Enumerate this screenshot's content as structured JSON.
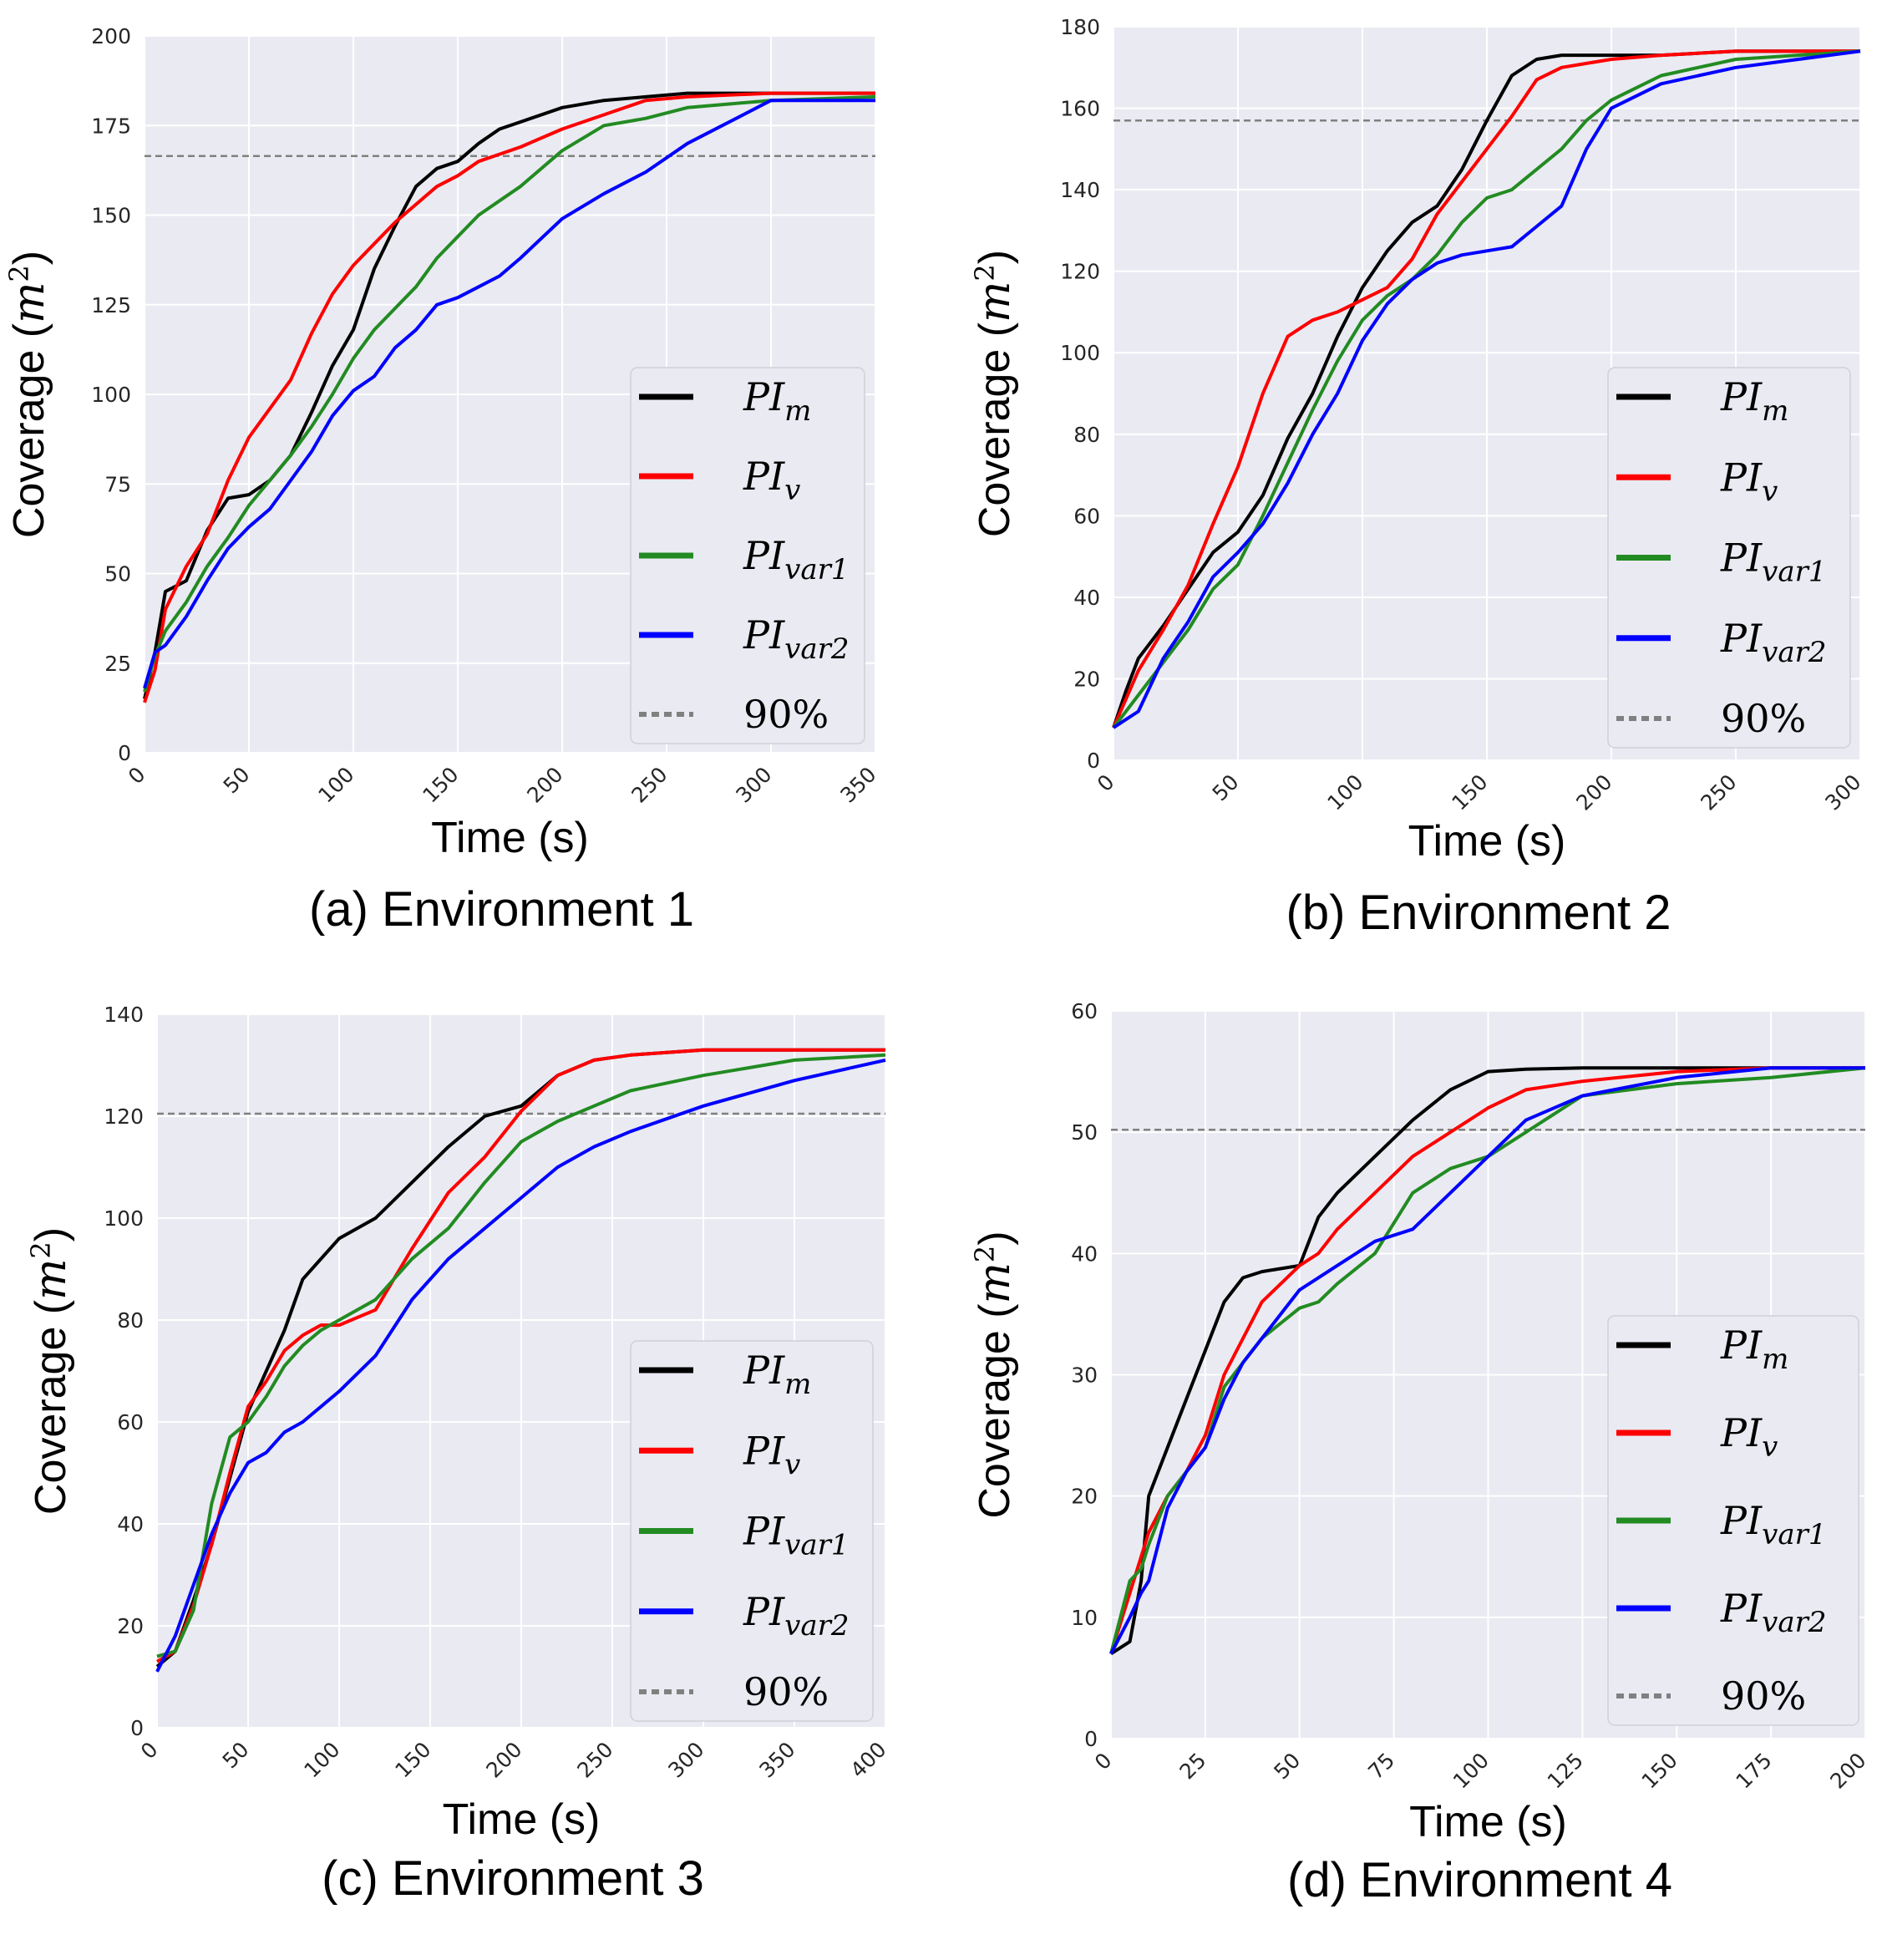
{
  "legend": [
    {
      "main": "PI",
      "sub": "m",
      "color": "#000000",
      "style": "solid"
    },
    {
      "main": "PI",
      "sub": "v",
      "color": "#ff0000",
      "style": "solid"
    },
    {
      "main": "PI",
      "sub": "var1",
      "color": "#228b22",
      "style": "solid"
    },
    {
      "main": "PI",
      "sub": "var2",
      "color": "#0000ff",
      "style": "solid"
    },
    {
      "main": "90%",
      "sub": "",
      "color": "#808080",
      "style": "dotted"
    }
  ],
  "chart_data": [
    {
      "type": "line",
      "caption": "(a) Environment 1",
      "xlabel": "Time (s)",
      "ylabel": "Coverage",
      "ylabel_unit": "m",
      "ylabel_exp": "2",
      "xlim": [
        0,
        350
      ],
      "ylim": [
        0,
        200
      ],
      "xticks": [
        "0",
        "50",
        "100",
        "150",
        "200",
        "250",
        "300",
        "350"
      ],
      "yticks": [
        "0",
        "25",
        "50",
        "75",
        "100",
        "125",
        "150",
        "175",
        "200"
      ],
      "threshold": 166.5,
      "grid": true,
      "legend_position": "lower-right",
      "series": [
        {
          "name": "PI_m",
          "x": [
            0,
            5,
            10,
            20,
            30,
            40,
            50,
            60,
            70,
            80,
            90,
            100,
            110,
            120,
            130,
            140,
            150,
            160,
            170,
            180,
            200,
            220,
            240,
            260,
            300,
            350
          ],
          "y": [
            15,
            28,
            45,
            48,
            62,
            71,
            72,
            76,
            83,
            95,
            108,
            118,
            135,
            147,
            158,
            163,
            165,
            170,
            174,
            176,
            180,
            182,
            183,
            184,
            184,
            184
          ]
        },
        {
          "name": "PI_v",
          "x": [
            0,
            5,
            10,
            20,
            30,
            40,
            50,
            60,
            70,
            80,
            90,
            100,
            110,
            120,
            130,
            140,
            150,
            160,
            170,
            180,
            200,
            220,
            240,
            260,
            300,
            350
          ],
          "y": [
            14,
            23,
            40,
            52,
            61,
            76,
            88,
            96,
            104,
            117,
            128,
            136,
            142,
            148,
            153,
            158,
            161,
            165,
            167,
            169,
            174,
            178,
            182,
            183,
            184,
            184
          ]
        },
        {
          "name": "PI_var1",
          "x": [
            0,
            5,
            10,
            20,
            30,
            40,
            50,
            60,
            70,
            80,
            90,
            100,
            110,
            120,
            130,
            140,
            150,
            160,
            170,
            180,
            200,
            220,
            240,
            260,
            300,
            350
          ],
          "y": [
            17,
            27,
            34,
            42,
            52,
            60,
            69,
            76,
            83,
            91,
            100,
            110,
            118,
            124,
            130,
            138,
            144,
            150,
            154,
            158,
            168,
            175,
            177,
            180,
            182,
            183
          ]
        },
        {
          "name": "PI_var2",
          "x": [
            0,
            5,
            10,
            20,
            30,
            40,
            50,
            60,
            70,
            80,
            90,
            100,
            110,
            120,
            130,
            140,
            150,
            160,
            170,
            180,
            200,
            220,
            240,
            260,
            300,
            350
          ],
          "y": [
            18,
            28,
            30,
            38,
            48,
            57,
            63,
            68,
            76,
            84,
            94,
            101,
            105,
            113,
            118,
            125,
            127,
            130,
            133,
            138,
            149,
            156,
            162,
            170,
            182,
            182
          ]
        }
      ]
    },
    {
      "type": "line",
      "caption": "(b) Environment 2",
      "xlabel": "Time (s)",
      "ylabel": "Coverage",
      "ylabel_unit": "m",
      "ylabel_exp": "2",
      "xlim": [
        0,
        300
      ],
      "ylim": [
        0,
        180
      ],
      "xticks": [
        "0",
        "50",
        "100",
        "150",
        "200",
        "250",
        "300"
      ],
      "yticks": [
        "0",
        "20",
        "40",
        "60",
        "80",
        "100",
        "120",
        "140",
        "160",
        "180"
      ],
      "threshold": 157,
      "grid": true,
      "legend_position": "lower-right",
      "series": [
        {
          "name": "PI_m",
          "x": [
            0,
            5,
            10,
            20,
            30,
            40,
            50,
            60,
            70,
            80,
            90,
            100,
            110,
            120,
            130,
            140,
            150,
            160,
            170,
            180,
            190,
            200,
            220,
            250,
            300
          ],
          "y": [
            8,
            17,
            25,
            33,
            42,
            51,
            56,
            65,
            79,
            90,
            104,
            116,
            125,
            132,
            136,
            145,
            157,
            168,
            172,
            173,
            173,
            173,
            173,
            174,
            174
          ]
        },
        {
          "name": "PI_v",
          "x": [
            0,
            5,
            10,
            20,
            30,
            40,
            50,
            60,
            70,
            80,
            90,
            100,
            110,
            120,
            130,
            140,
            150,
            160,
            170,
            180,
            190,
            200,
            220,
            250,
            300
          ],
          "y": [
            8,
            15,
            22,
            32,
            43,
            58,
            72,
            90,
            104,
            108,
            110,
            113,
            116,
            123,
            134,
            142,
            150,
            158,
            167,
            170,
            171,
            172,
            173,
            174,
            174
          ]
        },
        {
          "name": "PI_var1",
          "x": [
            0,
            5,
            10,
            20,
            30,
            40,
            50,
            60,
            70,
            80,
            90,
            100,
            110,
            120,
            130,
            140,
            150,
            160,
            170,
            180,
            190,
            200,
            220,
            250,
            300
          ],
          "y": [
            8,
            12,
            16,
            24,
            32,
            42,
            48,
            60,
            73,
            86,
            98,
            108,
            114,
            118,
            124,
            132,
            138,
            140,
            145,
            150,
            157,
            162,
            168,
            172,
            174
          ]
        },
        {
          "name": "PI_var2",
          "x": [
            0,
            5,
            10,
            20,
            30,
            40,
            50,
            60,
            70,
            80,
            90,
            100,
            110,
            120,
            130,
            140,
            150,
            160,
            170,
            180,
            190,
            200,
            220,
            250,
            300
          ],
          "y": [
            8,
            10,
            12,
            25,
            34,
            45,
            51,
            58,
            68,
            80,
            90,
            103,
            112,
            118,
            122,
            124,
            125,
            126,
            131,
            136,
            150,
            160,
            166,
            170,
            174
          ]
        }
      ]
    },
    {
      "type": "line",
      "caption": "(c) Environment 3",
      "xlabel": "Time (s)",
      "ylabel": "Coverage",
      "ylabel_unit": "m",
      "ylabel_exp": "2",
      "xlim": [
        0,
        400
      ],
      "ylim": [
        0,
        140
      ],
      "xticks": [
        "0",
        "50",
        "100",
        "150",
        "200",
        "250",
        "300",
        "350",
        "400"
      ],
      "yticks": [
        "0",
        "20",
        "40",
        "60",
        "80",
        "100",
        "120",
        "140"
      ],
      "threshold": 120.5,
      "grid": true,
      "legend_position": "lower-right",
      "series": [
        {
          "name": "PI_m",
          "x": [
            0,
            10,
            20,
            30,
            40,
            50,
            60,
            70,
            80,
            90,
            100,
            120,
            140,
            160,
            180,
            200,
            220,
            240,
            260,
            300,
            350,
            400
          ],
          "y": [
            12,
            15,
            25,
            36,
            49,
            62,
            70,
            78,
            88,
            92,
            96,
            100,
            107,
            114,
            120,
            122,
            128,
            131,
            132,
            133,
            133,
            133
          ]
        },
        {
          "name": "PI_v",
          "x": [
            0,
            10,
            20,
            30,
            40,
            50,
            60,
            70,
            80,
            90,
            100,
            120,
            140,
            160,
            180,
            200,
            220,
            240,
            260,
            300,
            350,
            400
          ],
          "y": [
            13,
            15,
            24,
            36,
            50,
            63,
            68,
            74,
            77,
            79,
            79,
            82,
            94,
            105,
            112,
            121,
            128,
            131,
            132,
            133,
            133,
            133
          ]
        },
        {
          "name": "PI_var1",
          "x": [
            0,
            10,
            20,
            30,
            40,
            50,
            60,
            70,
            80,
            90,
            100,
            120,
            140,
            160,
            180,
            200,
            220,
            240,
            260,
            300,
            350,
            400
          ],
          "y": [
            14,
            15,
            23,
            44,
            57,
            60,
            65,
            71,
            75,
            78,
            80,
            84,
            92,
            98,
            107,
            115,
            119,
            122,
            125,
            128,
            131,
            132
          ]
        },
        {
          "name": "PI_var2",
          "x": [
            0,
            10,
            20,
            30,
            40,
            50,
            60,
            70,
            80,
            90,
            100,
            120,
            140,
            160,
            180,
            200,
            220,
            240,
            260,
            300,
            350,
            400
          ],
          "y": [
            11,
            18,
            28,
            38,
            46,
            52,
            54,
            58,
            60,
            63,
            66,
            73,
            84,
            92,
            98,
            104,
            110,
            114,
            117,
            122,
            127,
            131
          ]
        }
      ]
    },
    {
      "type": "line",
      "caption": "(d) Environment 4",
      "xlabel": "Time (s)",
      "ylabel": "Coverage",
      "ylabel_unit": "m",
      "ylabel_exp": "2",
      "xlim": [
        0,
        200
      ],
      "ylim": [
        0,
        60
      ],
      "xticks": [
        "0",
        "25",
        "50",
        "75",
        "100",
        "125",
        "150",
        "175",
        "200"
      ],
      "yticks": [
        "0",
        "10",
        "20",
        "30",
        "40",
        "50",
        "60"
      ],
      "threshold": 50.2,
      "grid": true,
      "legend_position": "lower-right",
      "series": [
        {
          "name": "PI_m",
          "x": [
            0,
            5,
            8,
            10,
            15,
            20,
            25,
            30,
            35,
            40,
            50,
            55,
            60,
            70,
            80,
            90,
            100,
            110,
            125,
            150,
            175,
            200
          ],
          "y": [
            7,
            8,
            13,
            20,
            24,
            28,
            32,
            36,
            38,
            38.5,
            39,
            43,
            45,
            48,
            51,
            53.5,
            55,
            55.2,
            55.3,
            55.3,
            55.3,
            55.3
          ]
        },
        {
          "name": "PI_v",
          "x": [
            0,
            5,
            8,
            10,
            15,
            20,
            25,
            30,
            35,
            40,
            50,
            55,
            60,
            70,
            80,
            90,
            100,
            110,
            125,
            150,
            175,
            200
          ],
          "y": [
            7,
            12,
            15,
            17,
            20,
            22,
            25,
            30,
            33,
            36,
            39,
            40,
            42,
            45,
            48,
            50,
            52,
            53.5,
            54.2,
            55,
            55.3,
            55.3
          ]
        },
        {
          "name": "PI_var1",
          "x": [
            0,
            5,
            8,
            10,
            15,
            20,
            25,
            30,
            35,
            40,
            50,
            55,
            60,
            70,
            80,
            90,
            100,
            110,
            125,
            150,
            175,
            200
          ],
          "y": [
            7,
            13,
            14,
            16,
            20,
            22,
            24,
            29,
            31,
            33,
            35.5,
            36,
            37.5,
            40,
            45,
            47,
            48,
            50,
            53,
            54,
            54.5,
            55.3
          ]
        },
        {
          "name": "PI_var2",
          "x": [
            0,
            5,
            8,
            10,
            15,
            20,
            25,
            30,
            35,
            40,
            50,
            55,
            60,
            70,
            80,
            90,
            100,
            110,
            125,
            150,
            175,
            200
          ],
          "y": [
            7,
            10,
            12,
            13,
            19,
            22,
            24,
            28,
            31,
            33,
            37,
            38,
            39,
            41,
            42,
            45,
            48,
            51,
            53,
            54.5,
            55.3,
            55.3
          ]
        }
      ]
    }
  ]
}
